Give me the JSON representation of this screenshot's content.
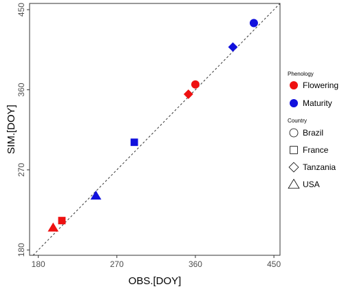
{
  "chart_data": {
    "type": "scatter",
    "title": "",
    "xlabel": "OBS.[DOY]",
    "ylabel": "SIM.[DOY]",
    "xlim": [
      170,
      457
    ],
    "ylim": [
      174,
      457
    ],
    "xticks": [
      180,
      270,
      360,
      450
    ],
    "yticks": [
      180,
      270,
      360,
      450
    ],
    "grid": false,
    "reference_line": "1:1 dashed",
    "legend_position": "right",
    "color_legend": {
      "title": "Phenology",
      "entries": [
        {
          "label": "Flowering",
          "color": "#ee1111"
        },
        {
          "label": "Maturity",
          "color": "#1111dd"
        }
      ]
    },
    "shape_legend": {
      "title": "Country",
      "entries": [
        {
          "label": "Brazil",
          "shape": "circle"
        },
        {
          "label": "France",
          "shape": "square"
        },
        {
          "label": "Tanzania",
          "shape": "diamond"
        },
        {
          "label": "USA",
          "shape": "triangle"
        }
      ]
    },
    "points": [
      {
        "x": 197,
        "y": 205,
        "phenology": "Flowering",
        "country": "USA"
      },
      {
        "x": 207,
        "y": 213,
        "phenology": "Flowering",
        "country": "France"
      },
      {
        "x": 246,
        "y": 241,
        "phenology": "Maturity",
        "country": "USA"
      },
      {
        "x": 290,
        "y": 301,
        "phenology": "Maturity",
        "country": "France"
      },
      {
        "x": 352,
        "y": 355,
        "phenology": "Flowering",
        "country": "Tanzania"
      },
      {
        "x": 360,
        "y": 366,
        "phenology": "Flowering",
        "country": "Brazil"
      },
      {
        "x": 403,
        "y": 408,
        "phenology": "Maturity",
        "country": "Tanzania"
      },
      {
        "x": 427,
        "y": 435,
        "phenology": "Maturity",
        "country": "Brazil"
      }
    ]
  }
}
